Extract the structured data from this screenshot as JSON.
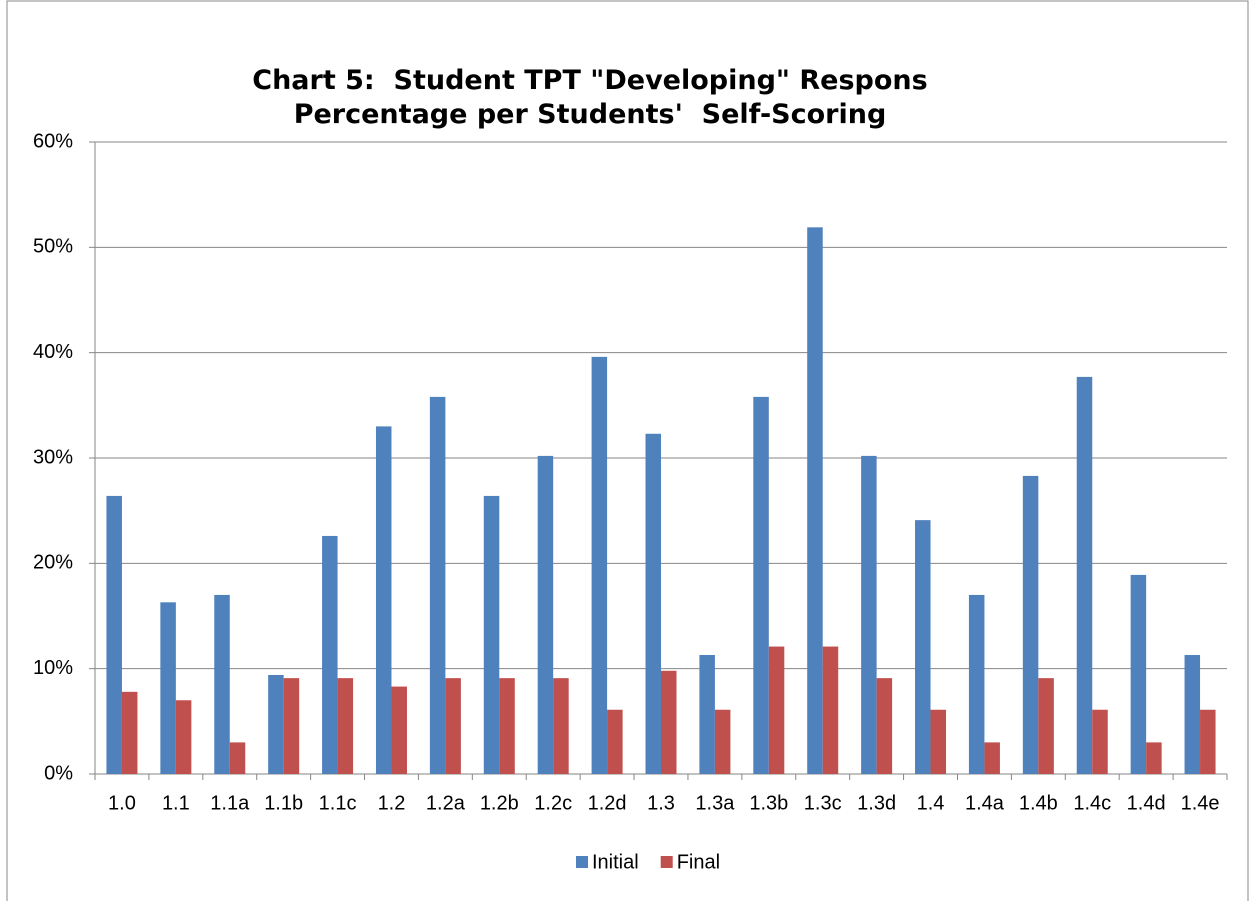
{
  "chart_data": {
    "type": "bar",
    "title": "Chart 5:  Student TPT \"Developing\" Respons Percentage per Students'  Self-Scoring",
    "categories": [
      "1.0",
      "1.1",
      "1.1a",
      "1.1b",
      "1.1c",
      "1.2",
      "1.2a",
      "1.2b",
      "1.2c",
      "1.2d",
      "1.3",
      "1.3a",
      "1.3b",
      "1.3c",
      "1.3d",
      "1.4",
      "1.4a",
      "1.4b",
      "1.4c",
      "1.4d",
      "1.4e"
    ],
    "series": [
      {
        "name": "Initial",
        "color": "#4f81bd",
        "values": [
          26.4,
          16.3,
          17.0,
          9.4,
          22.6,
          33.0,
          35.8,
          26.4,
          30.2,
          39.6,
          32.3,
          11.3,
          35.8,
          51.9,
          30.2,
          24.1,
          17.0,
          28.3,
          37.7,
          18.9,
          11.3
        ]
      },
      {
        "name": "Final",
        "color": "#c0504d",
        "values": [
          7.8,
          7.0,
          3.0,
          9.1,
          9.1,
          8.3,
          9.1,
          9.1,
          9.1,
          6.1,
          9.8,
          6.1,
          12.1,
          12.1,
          9.1,
          6.1,
          3.0,
          9.1,
          6.1,
          3.0,
          6.1
        ]
      }
    ],
    "ylim": [
      0,
      60
    ],
    "yticks": [
      {
        "value": 0,
        "label": "0%"
      },
      {
        "value": 10,
        "label": "10%"
      },
      {
        "value": 20,
        "label": "20%"
      },
      {
        "value": 30,
        "label": "30%"
      },
      {
        "value": 40,
        "label": "40%"
      },
      {
        "value": 50,
        "label": "50%"
      },
      {
        "value": 60,
        "label": "60%"
      }
    ],
    "grid": true,
    "legend": "bottom"
  }
}
